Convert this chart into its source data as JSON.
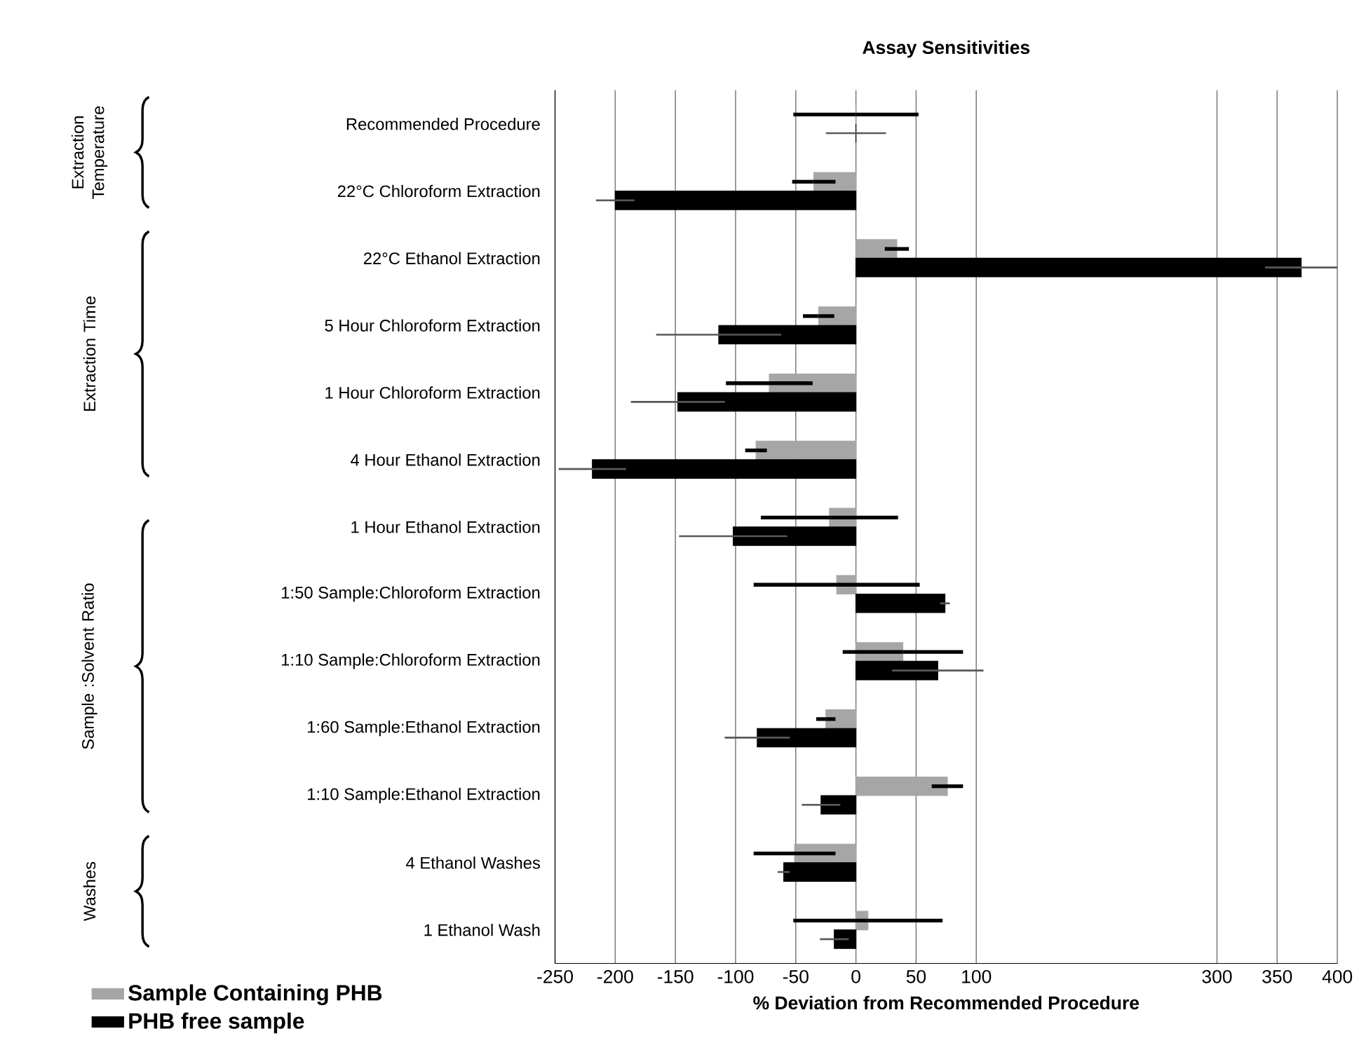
{
  "chart_data": {
    "type": "bar",
    "orientation": "horizontal",
    "title": "Assay Sensitivities",
    "xlabel": "% Deviation from Recommended Procedure",
    "categories": [
      "Recommended Procedure",
      "22°C Chloroform Extraction",
      "22°C Ethanol Extraction",
      "5 Hour Chloroform Extraction",
      "1 Hour Chloroform Extraction",
      "4 Hour Ethanol Extraction",
      "1 Hour Ethanol Extraction",
      "1:50 Sample:Chloroform Extraction",
      "1:10 Sample:Chloroform Extraction",
      "1:60 Sample:Ethanol Extraction",
      "1:10 Sample:Ethanol Extraction",
      "4 Ethanol Washes",
      "1 Ethanol Wash"
    ],
    "series": [
      {
        "name": "Sample Containing PHB",
        "color": "#a6a6a6",
        "values": [
          0,
          -35,
          34,
          -31,
          -72,
          -83,
          -22,
          -16,
          39,
          -25,
          76,
          -51,
          10
        ],
        "errors": [
          52,
          18,
          10,
          13,
          36,
          9,
          57,
          69,
          50,
          8,
          13,
          34,
          62
        ]
      },
      {
        "name": "PHB free sample",
        "color": "#000000",
        "values": [
          0,
          -200,
          370,
          -114,
          -148,
          -219,
          -102,
          74,
          68,
          -82,
          -29,
          -60,
          -18
        ],
        "errors": [
          25,
          16,
          30,
          52,
          39,
          28,
          45,
          4,
          38,
          27,
          16,
          5,
          12
        ]
      }
    ],
    "xlim": [
      -250,
      400
    ],
    "xticks": [
      -250,
      -200,
      -150,
      -100,
      -50,
      0,
      50,
      100,
      300,
      350,
      400
    ],
    "grid": "x",
    "legend": "bottom left",
    "annotations": [
      "Extraction Temperature",
      "Extraction Time",
      "Sample :Solvent Ratio",
      "Washes"
    ]
  }
}
